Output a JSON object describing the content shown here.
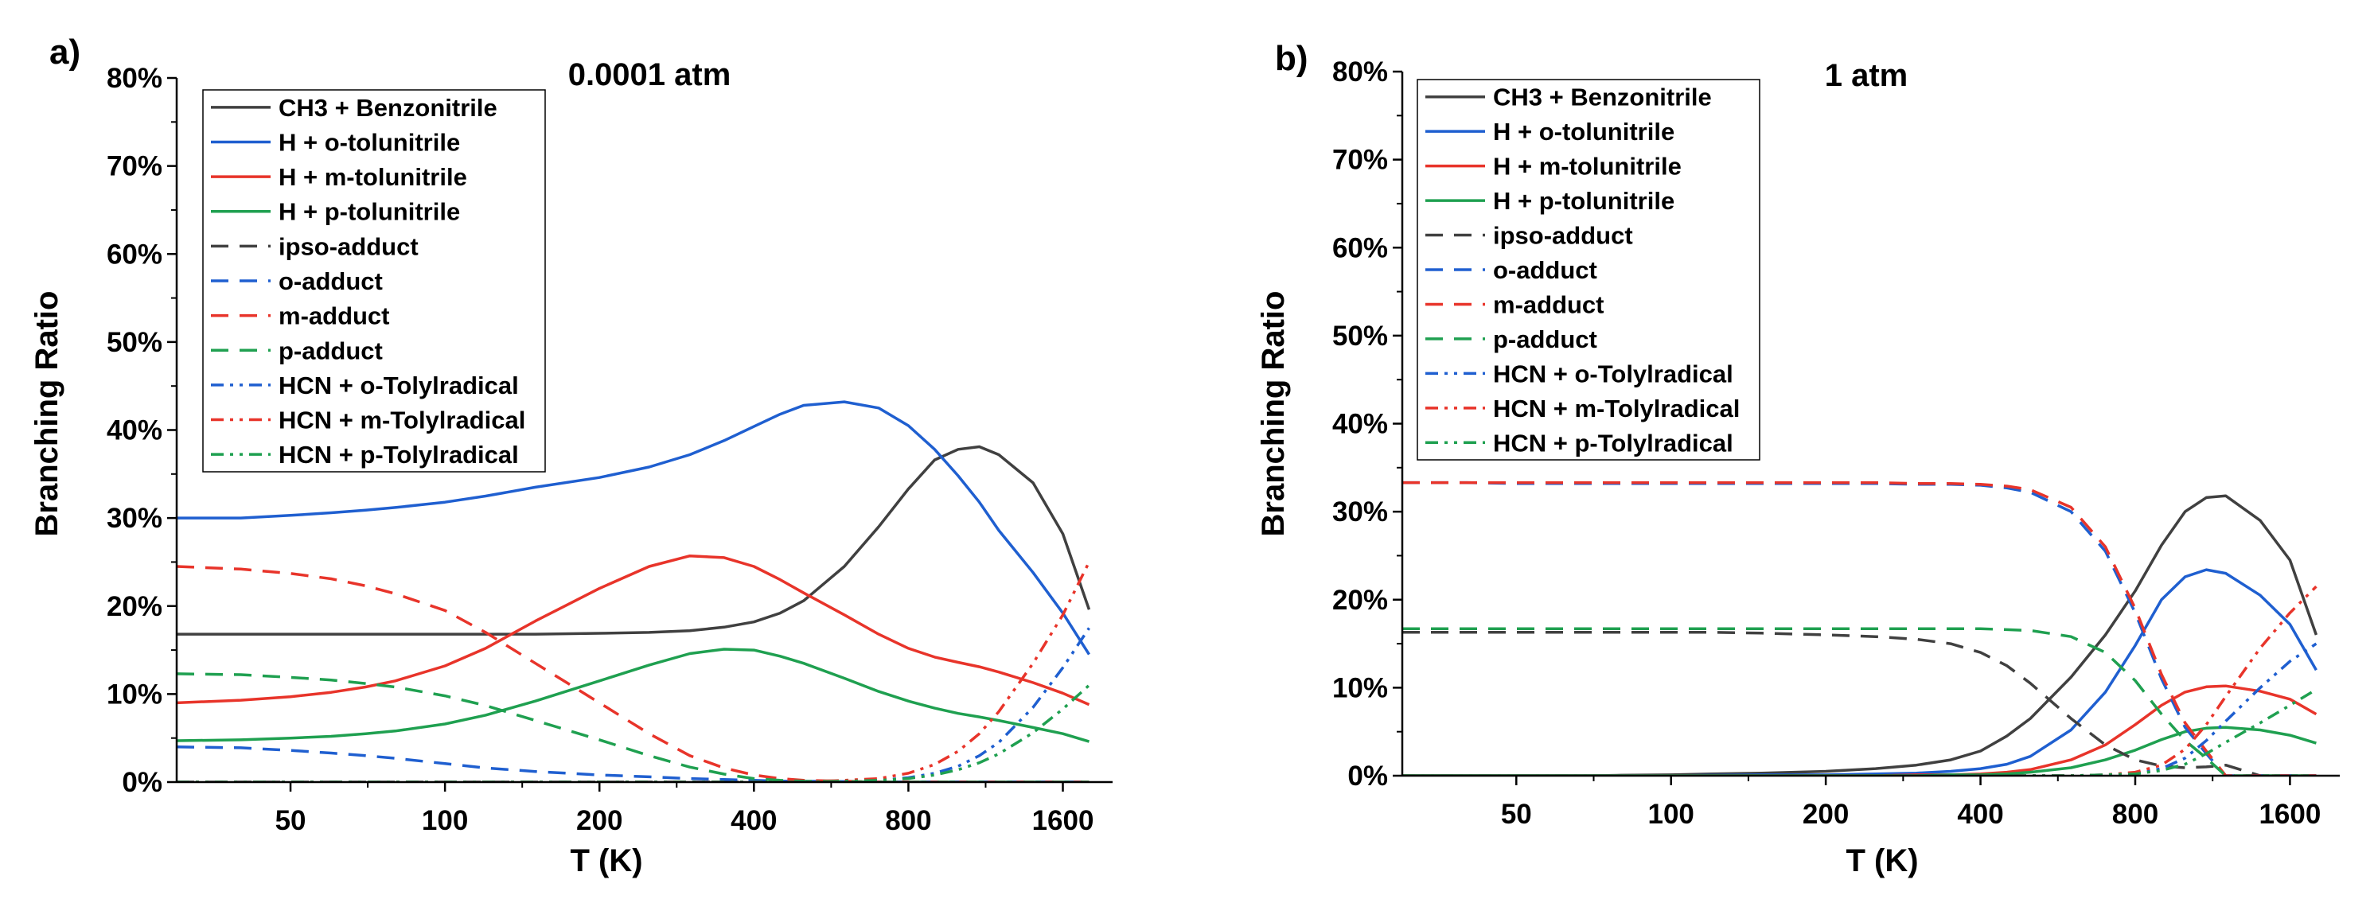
{
  "figure": {
    "xaxis_label": "T (K)",
    "yaxis_label": "Branching Ratio"
  },
  "chart_data": [
    {
      "type": "line",
      "panel": "a)",
      "title": "0.0001 atm",
      "xlabel": "T (K)",
      "ylabel": "Branching Ratio",
      "xscale": "log",
      "xlim": [
        30,
        2000
      ],
      "ylim": [
        0,
        0.8
      ],
      "xticks": [
        50,
        100,
        200,
        400,
        800,
        1600
      ],
      "xtick_labels": [
        "50",
        "100",
        "200",
        "400",
        "800",
        "1600"
      ],
      "yticks": [
        0,
        0.1,
        0.2,
        0.3,
        0.4,
        0.5,
        0.6,
        0.7,
        0.8
      ],
      "ytick_labels": [
        "0%",
        "10%",
        "20%",
        "30%",
        "40%",
        "50%",
        "60%",
        "70%",
        "80%"
      ],
      "legend_position": "top-left",
      "x": [
        30,
        40,
        50,
        60,
        70,
        80,
        100,
        120,
        150,
        200,
        250,
        300,
        350,
        400,
        450,
        500,
        600,
        700,
        800,
        900,
        1000,
        1100,
        1200,
        1400,
        1600,
        1800
      ],
      "series": [
        {
          "name": "CH3 + Benzonitrile",
          "color": "#404040",
          "dash": "solid",
          "values": [
            0.168,
            0.168,
            0.168,
            0.168,
            0.168,
            0.168,
            0.168,
            0.168,
            0.168,
            0.169,
            0.17,
            0.172,
            0.176,
            0.182,
            0.192,
            0.206,
            0.245,
            0.29,
            0.333,
            0.366,
            0.378,
            0.381,
            0.372,
            0.34,
            0.282,
            0.196
          ]
        },
        {
          "name": "H + o-tolunitrile",
          "color": "#1f5fd0",
          "dash": "solid",
          "values": [
            0.3,
            0.3,
            0.303,
            0.306,
            0.309,
            0.312,
            0.318,
            0.325,
            0.335,
            0.346,
            0.358,
            0.372,
            0.388,
            0.404,
            0.418,
            0.428,
            0.432,
            0.425,
            0.405,
            0.378,
            0.348,
            0.318,
            0.286,
            0.238,
            0.192,
            0.145
          ]
        },
        {
          "name": "H + m-tolunitrile",
          "color": "#e8342a",
          "dash": "solid",
          "values": [
            0.09,
            0.093,
            0.097,
            0.102,
            0.108,
            0.115,
            0.132,
            0.152,
            0.183,
            0.22,
            0.245,
            0.257,
            0.255,
            0.245,
            0.23,
            0.215,
            0.19,
            0.168,
            0.152,
            0.142,
            0.136,
            0.131,
            0.125,
            0.113,
            0.101,
            0.088
          ]
        },
        {
          "name": "H + p-tolunitrile",
          "color": "#1fa050",
          "dash": "solid",
          "values": [
            0.047,
            0.048,
            0.05,
            0.052,
            0.055,
            0.058,
            0.066,
            0.076,
            0.092,
            0.115,
            0.133,
            0.146,
            0.151,
            0.15,
            0.143,
            0.135,
            0.118,
            0.103,
            0.092,
            0.084,
            0.078,
            0.074,
            0.07,
            0.062,
            0.055,
            0.046
          ]
        },
        {
          "name": "ipso-adduct",
          "color": "#404040",
          "dash": "dash",
          "values": [
            0,
            0,
            0,
            0,
            0,
            0,
            0,
            0,
            0,
            0,
            0,
            0,
            0,
            0,
            0,
            0,
            0,
            0,
            0,
            0,
            0,
            0,
            0,
            0,
            0,
            0
          ]
        },
        {
          "name": "o-adduct",
          "color": "#1f5fd0",
          "dash": "dash",
          "values": [
            0.04,
            0.039,
            0.036,
            0.033,
            0.03,
            0.027,
            0.021,
            0.016,
            0.012,
            0.008,
            0.006,
            0.004,
            0.003,
            0.002,
            0.001,
            0.001,
            0.0005,
            0,
            0,
            0,
            0,
            0,
            0,
            0,
            0,
            0
          ]
        },
        {
          "name": "m-adduct",
          "color": "#e8342a",
          "dash": "dash",
          "values": [
            0.245,
            0.242,
            0.237,
            0.231,
            0.223,
            0.214,
            0.195,
            0.17,
            0.135,
            0.09,
            0.055,
            0.03,
            0.016,
            0.008,
            0.004,
            0.002,
            0.001,
            0,
            0,
            0,
            0,
            0,
            0,
            0,
            0,
            0
          ]
        },
        {
          "name": "p-adduct",
          "color": "#1fa050",
          "dash": "dash",
          "values": [
            0.123,
            0.122,
            0.119,
            0.116,
            0.112,
            0.108,
            0.098,
            0.087,
            0.07,
            0.048,
            0.03,
            0.017,
            0.009,
            0.004,
            0.002,
            0.001,
            0.0005,
            0,
            0,
            0,
            0,
            0,
            0,
            0,
            0,
            0
          ]
        },
        {
          "name": "HCN + o-Tolylradical",
          "color": "#1f5fd0",
          "dash": "dashdotdot",
          "values": [
            0,
            0,
            0,
            0,
            0,
            0,
            0,
            0,
            0,
            0,
            0,
            0,
            0,
            0,
            0,
            0,
            0.001,
            0.002,
            0.005,
            0.01,
            0.018,
            0.03,
            0.045,
            0.085,
            0.13,
            0.175
          ]
        },
        {
          "name": "HCN + m-Tolylradical",
          "color": "#e8342a",
          "dash": "dashdotdot",
          "values": [
            0,
            0,
            0,
            0,
            0,
            0,
            0,
            0,
            0,
            0,
            0,
            0,
            0,
            0,
            0,
            0,
            0.002,
            0.004,
            0.01,
            0.02,
            0.035,
            0.055,
            0.08,
            0.135,
            0.19,
            0.25
          ]
        },
        {
          "name": "HCN + p-Tolylradical",
          "color": "#1fa050",
          "dash": "dashdotdot",
          "values": [
            0,
            0,
            0,
            0,
            0,
            0,
            0,
            0,
            0,
            0,
            0,
            0,
            0,
            0,
            0,
            0,
            0.001,
            0.002,
            0.004,
            0.008,
            0.014,
            0.022,
            0.032,
            0.056,
            0.083,
            0.11
          ]
        }
      ]
    },
    {
      "type": "line",
      "panel": "b)",
      "title": "1 atm",
      "xlabel": "T (K)",
      "ylabel": "Branching Ratio",
      "xscale": "log",
      "xlim": [
        30,
        2000
      ],
      "ylim": [
        0,
        0.8
      ],
      "xticks": [
        50,
        100,
        200,
        400,
        800,
        1600
      ],
      "xtick_labels": [
        "50",
        "100",
        "200",
        "400",
        "800",
        "1600"
      ],
      "yticks": [
        0,
        0.1,
        0.2,
        0.3,
        0.4,
        0.5,
        0.6,
        0.7,
        0.8
      ],
      "ytick_labels": [
        "0%",
        "10%",
        "20%",
        "30%",
        "40%",
        "50%",
        "60%",
        "70%",
        "80%"
      ],
      "legend_position": "top-left",
      "x": [
        30,
        40,
        50,
        60,
        70,
        80,
        100,
        120,
        150,
        200,
        250,
        300,
        350,
        400,
        450,
        500,
        600,
        700,
        800,
        900,
        1000,
        1100,
        1200,
        1400,
        1600,
        1800
      ],
      "series": [
        {
          "name": "CH3 + Benzonitrile",
          "color": "#404040",
          "dash": "solid",
          "values": [
            0,
            0,
            0,
            0,
            0,
            0.0005,
            0.001,
            0.002,
            0.003,
            0.005,
            0.008,
            0.012,
            0.018,
            0.028,
            0.045,
            0.065,
            0.112,
            0.16,
            0.21,
            0.262,
            0.3,
            0.316,
            0.318,
            0.29,
            0.245,
            0.16
          ]
        },
        {
          "name": "H + o-tolunitrile",
          "color": "#1f5fd0",
          "dash": "solid",
          "values": [
            0,
            0,
            0,
            0,
            0,
            0,
            0,
            0.0005,
            0.001,
            0.001,
            0.002,
            0.003,
            0.005,
            0.008,
            0.013,
            0.022,
            0.052,
            0.095,
            0.148,
            0.2,
            0.226,
            0.234,
            0.23,
            0.205,
            0.172,
            0.12
          ]
        },
        {
          "name": "H + m-tolunitrile",
          "color": "#e8342a",
          "dash": "solid",
          "values": [
            0,
            0,
            0,
            0,
            0,
            0,
            0,
            0,
            0,
            0,
            0,
            0.001,
            0.001,
            0.002,
            0.004,
            0.007,
            0.018,
            0.035,
            0.058,
            0.08,
            0.095,
            0.101,
            0.102,
            0.096,
            0.087,
            0.07
          ]
        },
        {
          "name": "H + p-tolunitrile",
          "color": "#1fa050",
          "dash": "solid",
          "values": [
            0,
            0,
            0,
            0,
            0,
            0,
            0,
            0,
            0,
            0,
            0,
            0,
            0.001,
            0.001,
            0.002,
            0.004,
            0.009,
            0.018,
            0.029,
            0.041,
            0.05,
            0.054,
            0.055,
            0.052,
            0.046,
            0.037
          ]
        },
        {
          "name": "ipso-adduct",
          "color": "#404040",
          "dash": "dash",
          "values": [
            0.163,
            0.163,
            0.163,
            0.163,
            0.163,
            0.163,
            0.163,
            0.163,
            0.162,
            0.16,
            0.158,
            0.155,
            0.15,
            0.14,
            0.125,
            0.105,
            0.065,
            0.035,
            0.018,
            0.011,
            0.009,
            0.01,
            0.012,
            0,
            0,
            0
          ]
        },
        {
          "name": "o-adduct",
          "color": "#1f5fd0",
          "dash": "dash",
          "values": [
            0.333,
            0.333,
            0.332,
            0.332,
            0.332,
            0.332,
            0.332,
            0.332,
            0.332,
            0.332,
            0.332,
            0.331,
            0.331,
            0.33,
            0.327,
            0.322,
            0.3,
            0.255,
            0.185,
            0.11,
            0.055,
            0.025,
            0,
            0,
            0,
            0
          ]
        },
        {
          "name": "m-adduct",
          "color": "#e8342a",
          "dash": "dash",
          "values": [
            0.333,
            0.333,
            0.333,
            0.333,
            0.333,
            0.333,
            0.333,
            0.333,
            0.333,
            0.333,
            0.333,
            0.332,
            0.332,
            0.331,
            0.329,
            0.325,
            0.305,
            0.26,
            0.19,
            0.115,
            0.06,
            0.028,
            0,
            0,
            0,
            0
          ]
        },
        {
          "name": "p-adduct",
          "color": "#1fa050",
          "dash": "dash",
          "values": [
            0.167,
            0.167,
            0.167,
            0.167,
            0.167,
            0.167,
            0.167,
            0.167,
            0.167,
            0.167,
            0.167,
            0.167,
            0.167,
            0.167,
            0.166,
            0.165,
            0.158,
            0.14,
            0.108,
            0.07,
            0.04,
            0.02,
            0,
            0,
            0,
            0
          ]
        },
        {
          "name": "HCN + o-Tolylradical",
          "color": "#1f5fd0",
          "dash": "dashdotdot",
          "values": [
            0,
            0,
            0,
            0,
            0,
            0,
            0,
            0,
            0,
            0,
            0,
            0,
            0,
            0,
            0,
            0,
            0,
            0.001,
            0.003,
            0.008,
            0.02,
            0.04,
            0.062,
            0.1,
            0.13,
            0.15
          ]
        },
        {
          "name": "HCN + m-Tolylradical",
          "color": "#e8342a",
          "dash": "dashdotdot",
          "values": [
            0,
            0,
            0,
            0,
            0,
            0,
            0,
            0,
            0,
            0,
            0,
            0,
            0,
            0,
            0,
            0,
            0,
            0.001,
            0.004,
            0.012,
            0.03,
            0.058,
            0.09,
            0.145,
            0.185,
            0.215
          ]
        },
        {
          "name": "HCN + p-Tolylradical",
          "color": "#1fa050",
          "dash": "dashdotdot",
          "values": [
            0,
            0,
            0,
            0,
            0,
            0,
            0,
            0,
            0,
            0,
            0,
            0,
            0,
            0,
            0,
            0,
            0,
            0.001,
            0.002,
            0.006,
            0.013,
            0.025,
            0.038,
            0.06,
            0.08,
            0.098
          ]
        }
      ]
    }
  ]
}
